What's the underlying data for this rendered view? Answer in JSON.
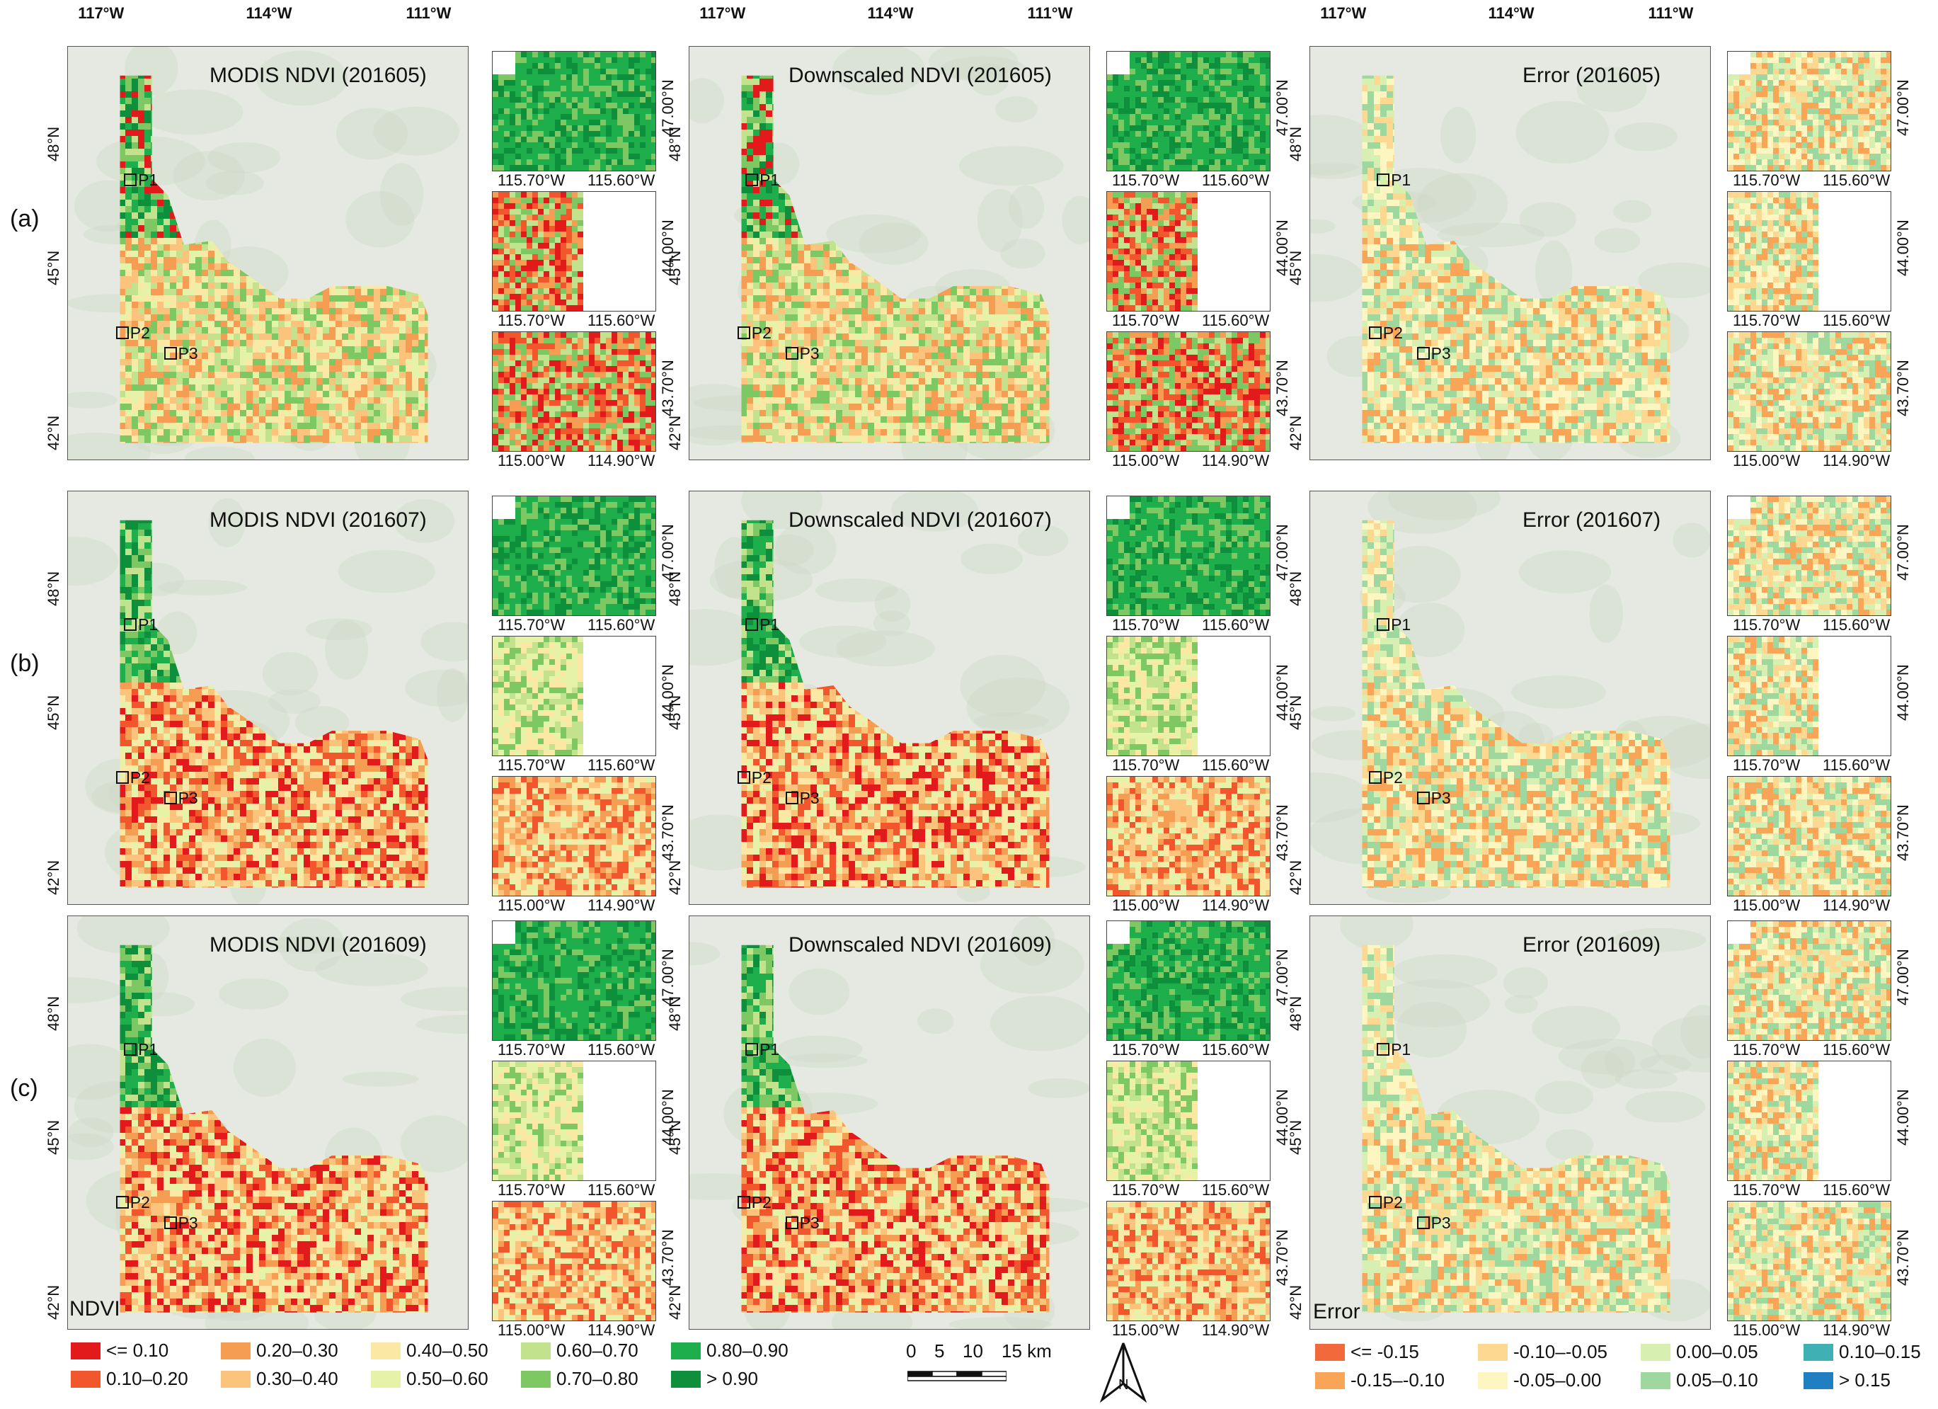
{
  "colors": {
    "ndvi": [
      "#e31a1c",
      "#f2562d",
      "#f59d52",
      "#fbc37c",
      "#fbe8a4",
      "#e6f2a8",
      "#c3e28e",
      "#7ec863",
      "#1eae4b",
      "#0d8f3c"
    ],
    "error": [
      "#f26a3c",
      "#f9a557",
      "#fcd891",
      "#fdf6c0",
      "#d8efb2",
      "#9ed89e",
      "#3fb1b4",
      "#1f7fc1"
    ],
    "background": "#e6e9e2"
  },
  "rows": [
    "(a)",
    "(b)",
    "(c)"
  ],
  "columns": [
    {
      "titles": [
        "MODIS NDVI (201605)",
        "MODIS NDVI (201607)",
        "MODIS NDVI (201609)"
      ]
    },
    {
      "titles": [
        "Downscaled NDVI (201605)",
        "Downscaled NDVI (201607)",
        "Downscaled NDVI (201609)"
      ]
    },
    {
      "titles": [
        "Error (201605)",
        "Error (201607)",
        "Error (201609)"
      ]
    }
  ],
  "top_axis": [
    "117°W",
    "114°W",
    "111°W"
  ],
  "left_axis": [
    "48°N",
    "45°N",
    "42°N"
  ],
  "points": [
    "P1",
    "P2",
    "P3"
  ],
  "inset_labels": {
    "i1": {
      "lat": "47.00°N",
      "w": "115.70°W",
      "e": "115.60°W"
    },
    "i2": {
      "lat": "44.00°N",
      "w": "115.70°W",
      "e": "115.60°W"
    },
    "i3": {
      "lat": "43.70°N",
      "w": "115.00°W",
      "e": "114.90°W"
    }
  },
  "legend_ndvi": {
    "title": "NDVI",
    "items": [
      "<= 0.10",
      "0.10–0.20",
      "0.20–0.30",
      "0.30–0.40",
      "0.40–0.50",
      "0.50–0.60",
      "0.60–0.70",
      "0.70–0.80",
      "0.80–0.90",
      "> 0.90"
    ]
  },
  "legend_error": {
    "title": "Error",
    "items": [
      "<= -0.15",
      "-0.15–-0.10",
      "-0.10–-0.05",
      "-0.05–0.00",
      "0.00–0.05",
      "0.05–0.10",
      "0.10–0.15",
      "> 0.15"
    ]
  },
  "scalebar": {
    "ticks": [
      "0",
      "5",
      "10",
      "15 km"
    ]
  },
  "north_label": "N"
}
